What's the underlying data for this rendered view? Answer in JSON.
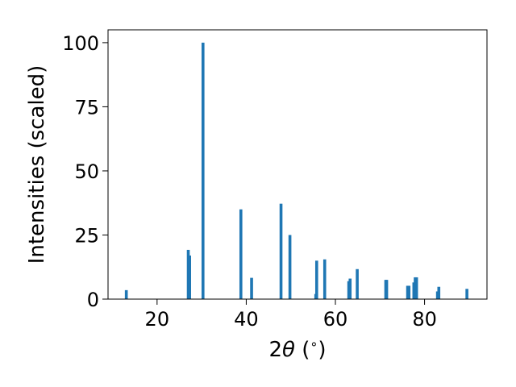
{
  "chart_data": {
    "type": "bar",
    "xlabel_pre": "2",
    "xlabel_symbol": "θ",
    "xlabel_post": " (",
    "xlabel_degree": "∘",
    "xlabel_close": ")",
    "ylabel": "Intensities (scaled)",
    "xlim": [
      9,
      94
    ],
    "ylim": [
      0,
      105
    ],
    "xticks": [
      20,
      40,
      60,
      80
    ],
    "yticks": [
      0,
      25,
      50,
      75,
      100
    ],
    "grid": false,
    "bar_color": "#1f77b4",
    "peaks": [
      {
        "x": 13.1,
        "y": 3.5
      },
      {
        "x": 27.0,
        "y": 19.2
      },
      {
        "x": 27.3,
        "y": 17.0
      },
      {
        "x": 30.3,
        "y": 100.0
      },
      {
        "x": 38.8,
        "y": 35.0
      },
      {
        "x": 41.2,
        "y": 8.3
      },
      {
        "x": 47.8,
        "y": 37.2
      },
      {
        "x": 49.8,
        "y": 25.0
      },
      {
        "x": 55.6,
        "y": 2.0
      },
      {
        "x": 55.8,
        "y": 15.0
      },
      {
        "x": 57.6,
        "y": 15.5
      },
      {
        "x": 63.0,
        "y": 7.0
      },
      {
        "x": 63.3,
        "y": 8.0
      },
      {
        "x": 64.9,
        "y": 11.7
      },
      {
        "x": 71.3,
        "y": 7.5
      },
      {
        "x": 71.5,
        "y": 7.5
      },
      {
        "x": 76.2,
        "y": 5.2
      },
      {
        "x": 76.5,
        "y": 5.2
      },
      {
        "x": 77.6,
        "y": 6.5
      },
      {
        "x": 77.9,
        "y": 8.5
      },
      {
        "x": 78.2,
        "y": 8.5
      },
      {
        "x": 82.9,
        "y": 3.0
      },
      {
        "x": 83.2,
        "y": 4.8
      },
      {
        "x": 89.5,
        "y": 4.0
      }
    ]
  }
}
